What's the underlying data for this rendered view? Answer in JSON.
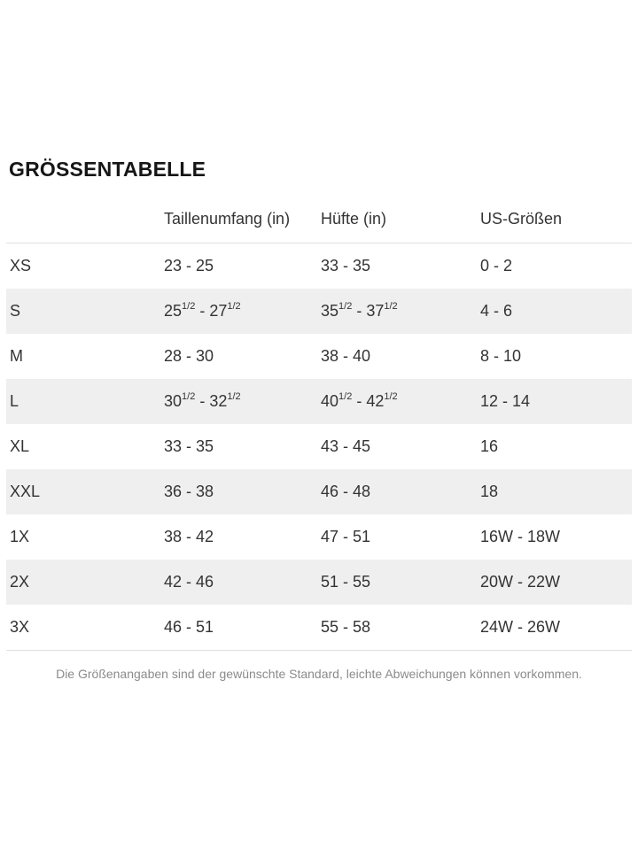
{
  "page": {
    "title": "GRÖSSENTABELLE",
    "footnote": "Die Größenangaben sind der gewünschte Standard, leichte Abweichungen können vorkommen."
  },
  "colors": {
    "stripe": "#efefef",
    "divider": "#e0e0e0",
    "text": "#333333",
    "footnote_text": "#8b8b8b"
  },
  "table": {
    "headers": [
      "",
      "Taillenumfang (in)",
      "Hüfte (in)",
      "US-Größen"
    ],
    "rows": [
      {
        "size": "XS",
        "waist": "23 - 25",
        "hip": "33 - 35",
        "us": "0 - 2"
      },
      {
        "size": "S",
        "waist": "25^1/2^ - 27^1/2^",
        "hip": "35^1/2^ - 37^1/2^",
        "us": "4 - 6"
      },
      {
        "size": "M",
        "waist": "28 - 30",
        "hip": "38 - 40",
        "us": "8 - 10"
      },
      {
        "size": "L",
        "waist": "30^1/2^ - 32^1/2^",
        "hip": "40^1/2^ - 42^1/2^",
        "us": "12 - 14"
      },
      {
        "size": "XL",
        "waist": "33 - 35",
        "hip": "43 - 45",
        "us": "16"
      },
      {
        "size": "XXL",
        "waist": "36 - 38",
        "hip": "46 - 48",
        "us": "18"
      },
      {
        "size": "1X",
        "waist": "38 - 42",
        "hip": "47 - 51",
        "us": "16W - 18W"
      },
      {
        "size": "2X",
        "waist": "42 - 46",
        "hip": "51 - 55",
        "us": "20W - 22W"
      },
      {
        "size": "3X",
        "waist": "46 - 51",
        "hip": "55 - 58",
        "us": "24W - 26W"
      }
    ]
  }
}
